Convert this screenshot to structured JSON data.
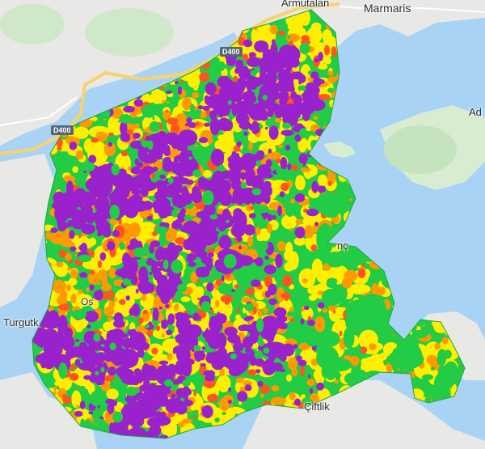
{
  "map": {
    "place_labels": [
      {
        "id": "armutalan",
        "text": "Armutalan"
      },
      {
        "id": "marmaris",
        "text": "Marmaris"
      },
      {
        "id": "adakoy",
        "text": "Ad"
      },
      {
        "id": "turgutk",
        "text": "Turgutk"
      },
      {
        "id": "ciftlik",
        "text": "Çiftlik"
      },
      {
        "id": "inc",
        "text": "nç"
      },
      {
        "id": "osm",
        "text": "Os"
      }
    ],
    "road_labels": [
      {
        "id": "d400-north",
        "text": "D400"
      },
      {
        "id": "d400-west",
        "text": "D400"
      }
    ],
    "overlay_colors": {
      "low": "#22cc44",
      "moderate": "#ffee00",
      "high": "#ff9900",
      "very_high": "#ff5522",
      "extreme": "#9922cc"
    },
    "base_colors": {
      "sea": "#a9d3f5",
      "land": "#e8e8e6",
      "forest": "#cfe8c9",
      "road": "#f6d36b"
    }
  }
}
